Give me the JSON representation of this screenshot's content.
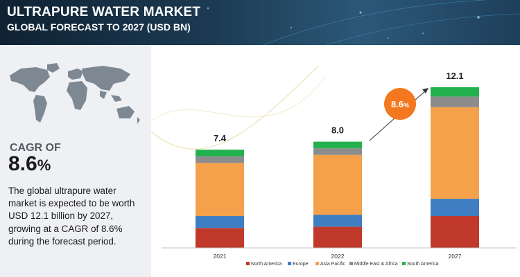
{
  "header": {
    "title": "ULTRAPURE WATER MARKET",
    "subtitle": "GLOBAL FORECAST TO 2027 (USD BN)"
  },
  "summary": {
    "cagr_label": "CAGR OF",
    "cagr_number": "8.6",
    "cagr_unit": "%",
    "description": "The global ultrapure water market is expected to be worth USD 12.1 billion by 2027, growing at a CAGR of 8.6% during the forecast period."
  },
  "chart_data": {
    "type": "bar",
    "stacked": true,
    "categories": [
      "2021",
      "2022",
      "2027"
    ],
    "totals": [
      "7.4",
      "8.0",
      "12.1"
    ],
    "series": [
      {
        "name": "North America",
        "color": "#c0392b",
        "values": [
          1.5,
          1.6,
          2.4
        ]
      },
      {
        "name": "Europe",
        "color": "#3f7fc1",
        "values": [
          0.9,
          0.9,
          1.3
        ]
      },
      {
        "name": "Asia Pacific",
        "color": "#f5a04a",
        "values": [
          4.0,
          4.5,
          6.9
        ]
      },
      {
        "name": "Middle East & Africa",
        "color": "#8c8c8c",
        "values": [
          0.5,
          0.5,
          0.8
        ]
      },
      {
        "name": "South America",
        "color": "#22b14c",
        "values": [
          0.5,
          0.5,
          0.7
        ]
      }
    ],
    "ylim": [
      0,
      12.1
    ],
    "grid": false,
    "legend_position": "bottom",
    "annotation": {
      "text": "8.6",
      "unit": "%",
      "color": "#f4781f"
    }
  }
}
